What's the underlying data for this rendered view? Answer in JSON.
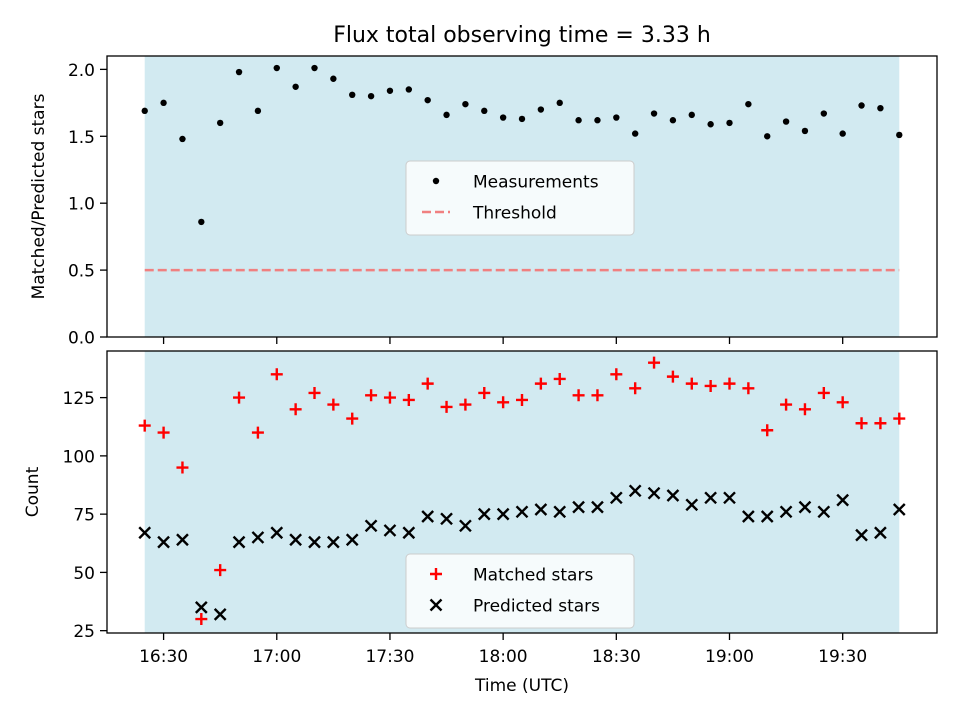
{
  "title": "Flux total observing time = 3.33 h",
  "chart_data": [
    {
      "type": "scatter",
      "panel": "top",
      "title": "Flux total observing time = 3.33 h",
      "ylabel": "Matched/Predicted stars",
      "xlabel": "",
      "ylim": [
        0,
        2.1
      ],
      "yticks": [
        0.0,
        0.5,
        1.0,
        1.5,
        2.0
      ],
      "ytick_labels": [
        "0.0",
        "0.5",
        "1.0",
        "1.5",
        "2.0"
      ],
      "xlim": [
        "16:15",
        "19:55"
      ],
      "observing_window": [
        "16:25",
        "19:45"
      ],
      "observing_window_color": "#add8e6",
      "legend_position": "center",
      "series": [
        {
          "name": "Measurements",
          "marker": "dot",
          "color": "#000000",
          "x": [
            "16:25",
            "16:30",
            "16:35",
            "16:40",
            "16:45",
            "16:50",
            "16:55",
            "17:00",
            "17:05",
            "17:10",
            "17:15",
            "17:20",
            "17:25",
            "17:30",
            "17:35",
            "17:40",
            "17:45",
            "17:50",
            "17:55",
            "18:00",
            "18:05",
            "18:10",
            "18:15",
            "18:20",
            "18:25",
            "18:30",
            "18:35",
            "18:40",
            "18:45",
            "18:50",
            "18:55",
            "19:00",
            "19:05",
            "19:10",
            "19:15",
            "19:20",
            "19:25",
            "19:30",
            "19:35",
            "19:40",
            "19:45"
          ],
          "y": [
            1.69,
            1.75,
            1.48,
            0.86,
            1.6,
            1.98,
            1.69,
            2.01,
            1.87,
            2.01,
            1.93,
            1.81,
            1.8,
            1.84,
            1.85,
            1.77,
            1.66,
            1.74,
            1.69,
            1.64,
            1.63,
            1.7,
            1.75,
            1.62,
            1.62,
            1.64,
            1.52,
            1.67,
            1.62,
            1.66,
            1.59,
            1.6,
            1.74,
            1.5,
            1.61,
            1.54,
            1.67,
            1.52,
            1.73,
            1.71,
            1.51
          ]
        },
        {
          "name": "Threshold",
          "style": "dashed-line",
          "color": "#f08080",
          "x": [
            "16:25",
            "19:45"
          ],
          "y": [
            0.5,
            0.5
          ]
        }
      ]
    },
    {
      "type": "scatter",
      "panel": "bottom",
      "ylabel": "Count",
      "xlabel": "Time (UTC)",
      "ylim": [
        24,
        145
      ],
      "yticks": [
        25,
        50,
        75,
        100,
        125
      ],
      "ytick_labels": [
        "25",
        "50",
        "75",
        "100",
        "125"
      ],
      "xticks": [
        "16:30",
        "17:00",
        "17:30",
        "18:00",
        "18:30",
        "19:00",
        "19:30"
      ],
      "xtick_labels": [
        "16:30",
        "17:00",
        "17:30",
        "18:00",
        "18:30",
        "19:00",
        "19:30"
      ],
      "xlim": [
        "16:15",
        "19:55"
      ],
      "observing_window": [
        "16:25",
        "19:45"
      ],
      "observing_window_color": "#add8e6",
      "legend_position": "lower center",
      "series": [
        {
          "name": "Matched stars",
          "marker": "plus",
          "color": "#ff0000",
          "x": [
            "16:25",
            "16:30",
            "16:35",
            "16:40",
            "16:45",
            "16:50",
            "16:55",
            "17:00",
            "17:05",
            "17:10",
            "17:15",
            "17:20",
            "17:25",
            "17:30",
            "17:35",
            "17:40",
            "17:45",
            "17:50",
            "17:55",
            "18:00",
            "18:05",
            "18:10",
            "18:15",
            "18:20",
            "18:25",
            "18:30",
            "18:35",
            "18:40",
            "18:45",
            "18:50",
            "18:55",
            "19:00",
            "19:05",
            "19:10",
            "19:15",
            "19:20",
            "19:25",
            "19:30",
            "19:35",
            "19:40",
            "19:45"
          ],
          "y": [
            113,
            110,
            95,
            30,
            51,
            125,
            110,
            135,
            120,
            127,
            122,
            116,
            126,
            125,
            124,
            131,
            121,
            122,
            127,
            123,
            124,
            131,
            133,
            126,
            126,
            135,
            129,
            140,
            134,
            131,
            130,
            131,
            129,
            111,
            122,
            120,
            127,
            123,
            114,
            114,
            116
          ]
        },
        {
          "name": "Predicted stars",
          "marker": "x",
          "color": "#000000",
          "x": [
            "16:25",
            "16:30",
            "16:35",
            "16:40",
            "16:45",
            "16:50",
            "16:55",
            "17:00",
            "17:05",
            "17:10",
            "17:15",
            "17:20",
            "17:25",
            "17:30",
            "17:35",
            "17:40",
            "17:45",
            "17:50",
            "17:55",
            "18:00",
            "18:05",
            "18:10",
            "18:15",
            "18:20",
            "18:25",
            "18:30",
            "18:35",
            "18:40",
            "18:45",
            "18:50",
            "18:55",
            "19:00",
            "19:05",
            "19:10",
            "19:15",
            "19:20",
            "19:25",
            "19:30",
            "19:35",
            "19:40",
            "19:45"
          ],
          "y": [
            67,
            63,
            64,
            35,
            32,
            63,
            65,
            67,
            64,
            63,
            63,
            64,
            70,
            68,
            67,
            74,
            73,
            70,
            75,
            75,
            76,
            77,
            76,
            78,
            78,
            82,
            85,
            84,
            83,
            79,
            82,
            82,
            74,
            74,
            76,
            78,
            76,
            81,
            66,
            67,
            77
          ]
        }
      ]
    }
  ]
}
